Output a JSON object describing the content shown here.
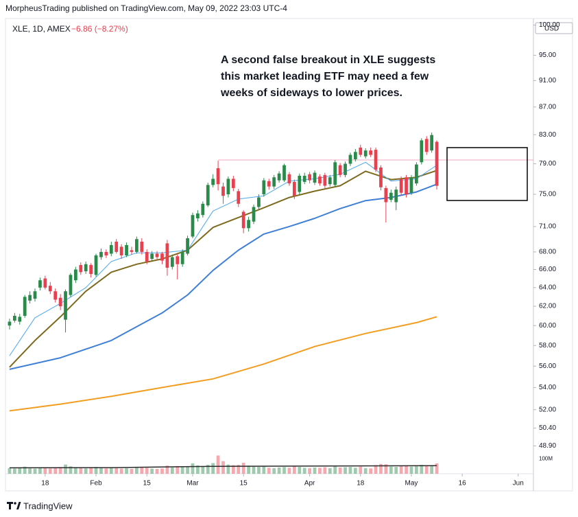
{
  "header": {
    "publisher": "MorpheusTrading published on TradingView.com, May 09, 2022 23:03 UTC-4",
    "symbol": "XLE, 1D, AMEX",
    "change": "−6.86 (−8.27%)",
    "currency": "USD",
    "brand": "TradingView"
  },
  "chart_data": {
    "type": "candlestick",
    "log_scale": true,
    "annotation": [
      "A second false breakout in XLE suggests",
      "this market leading ETF may need a few",
      "weeks of sideways to lower prices."
    ],
    "up_color": "#2a8a4a",
    "down_color": "#e8404e",
    "open": [
      60.0,
      60.5,
      60.4,
      61.0,
      62.6,
      62.8,
      64.0,
      65.0,
      64.2,
      63.6,
      62.9,
      60.6,
      63.2,
      64.8,
      66.5,
      65.8,
      66.5,
      65.4,
      67.4,
      68.0,
      67.8,
      69.2,
      68.6,
      67.6,
      68.2,
      68.0,
      69.2,
      68.0,
      67.2,
      67.8,
      67.8,
      69.0,
      66.3,
      67.5,
      66.6,
      67.8,
      69.8,
      72.0,
      72.4,
      73.6,
      76.2,
      78.4,
      76.0,
      75.0,
      77.0,
      75.4,
      72.8,
      70.8,
      71.6,
      73.4,
      75.0,
      76.7,
      76.0,
      76.8,
      76.8,
      77.6,
      76.6,
      75.3,
      76.6,
      77.6,
      76.5,
      77.3,
      77.5,
      76.3,
      76.2,
      78.8,
      77.5,
      79.0,
      79.6,
      81.2,
      80.0,
      80.8,
      80.9,
      78.5,
      75.8,
      74.3,
      74.0,
      77.0,
      77.2,
      75.2,
      76.4,
      79.2,
      82.4,
      80.8,
      82.0
    ],
    "high": [
      60.7,
      61.3,
      61.2,
      63.2,
      63.6,
      63.9,
      65.1,
      65.3,
      64.6,
      63.9,
      63.3,
      63.8,
      65.6,
      66.3,
      66.8,
      66.9,
      66.7,
      67.8,
      68.4,
      68.3,
      69.2,
      69.5,
      68.9,
      69.1,
      68.6,
      69.8,
      69.6,
      68.3,
      68.1,
      68.1,
      68.0,
      69.4,
      67.7,
      67.8,
      68.3,
      69.9,
      72.7,
      73.0,
      74.1,
      76.5,
      77.6,
      79.4,
      76.5,
      77.3,
      77.4,
      75.7,
      73.0,
      72.2,
      73.7,
      75.0,
      77.1,
      77.0,
      77.5,
      78.0,
      79.0,
      77.9,
      76.9,
      77.7,
      77.8,
      77.9,
      78.1,
      77.6,
      77.8,
      77.5,
      79.5,
      79.1,
      79.3,
      80.5,
      81.0,
      81.6,
      81.1,
      81.2,
      81.2,
      78.8,
      76.1,
      75.6,
      76.0,
      77.3,
      77.5,
      77.5,
      79.2,
      82.5,
      82.8,
      83.3,
      82.2
    ],
    "low": [
      59.6,
      60.3,
      60.1,
      60.8,
      62.3,
      62.5,
      63.7,
      63.8,
      63.3,
      62.4,
      61.6,
      59.3,
      63.0,
      64.5,
      65.4,
      65.5,
      65.1,
      65.2,
      67.1,
      67.3,
      67.5,
      67.8,
      67.2,
      67.4,
      67.7,
      67.8,
      67.7,
      66.6,
      66.9,
      67.1,
      66.6,
      65.3,
      66.0,
      64.9,
      66.3,
      67.6,
      69.6,
      71.6,
      72.1,
      73.4,
      75.9,
      75.5,
      73.8,
      74.6,
      75.4,
      73.4,
      70.2,
      70.4,
      71.3,
      73.1,
      74.7,
      75.6,
      75.7,
      76.5,
      76.6,
      76.1,
      74.4,
      75.0,
      76.3,
      76.4,
      76.2,
      76.1,
      75.8,
      76.0,
      76.0,
      77.2,
      77.2,
      78.7,
      79.3,
      79.9,
      79.7,
      79.9,
      77.9,
      75.5,
      71.5,
      74.0,
      73.0,
      74.8,
      74.6,
      74.9,
      76.1,
      78.9,
      80.2,
      80.5,
      75.6
    ],
    "close": [
      60.4,
      61.0,
      60.9,
      63.0,
      63.2,
      63.6,
      64.8,
      64.0,
      63.6,
      62.7,
      62.0,
      63.6,
      65.4,
      66.0,
      65.7,
      66.6,
      65.5,
      67.6,
      68.0,
      67.6,
      68.8,
      68.0,
      67.6,
      68.8,
      68.0,
      69.5,
      68.0,
      66.9,
      67.8,
      67.4,
      67.0,
      66.2,
      67.4,
      66.6,
      68.0,
      69.6,
      72.4,
      72.6,
      73.8,
      76.2,
      77.0,
      76.3,
      74.8,
      77.0,
      75.8,
      73.8,
      70.8,
      71.8,
      73.4,
      74.6,
      76.8,
      76.0,
      77.2,
      77.7,
      78.8,
      76.4,
      74.8,
      77.4,
      77.4,
      76.8,
      77.8,
      76.4,
      76.1,
      77.2,
      79.2,
      77.5,
      79.0,
      80.2,
      80.6,
      80.2,
      80.8,
      80.2,
      78.2,
      75.9,
      74.0,
      75.2,
      75.6,
      75.2,
      75.0,
      77.2,
      78.9,
      82.2,
      80.6,
      82.95,
      76.09
    ],
    "series": [
      {
        "color": "#f29d1f",
        "x": [
          0,
          10,
          20,
          30,
          40,
          50,
          60,
          70,
          80,
          84
        ],
        "values": [
          51.9,
          52.5,
          53.2,
          54.0,
          54.8,
          56.2,
          57.9,
          59.2,
          60.3,
          60.9
        ]
      },
      {
        "color": "#3f7fd6",
        "x": [
          0,
          10,
          20,
          30,
          35,
          40,
          45,
          50,
          55,
          60,
          65,
          70,
          75,
          80,
          84
        ],
        "values": [
          55.7,
          56.8,
          58.5,
          61.3,
          63.2,
          65.9,
          68.2,
          70.1,
          71.0,
          72.0,
          73.2,
          74.2,
          74.6,
          75.3,
          76.3
        ]
      },
      {
        "color": "#7d6a1e",
        "x": [
          0,
          5,
          10,
          15,
          20,
          25,
          30,
          35,
          40,
          45,
          50,
          55,
          60,
          65,
          70,
          75,
          80,
          84
        ],
        "values": [
          55.9,
          58.5,
          60.9,
          63.6,
          65.7,
          66.6,
          67.2,
          68.2,
          70.9,
          72.1,
          73.3,
          74.6,
          75.4,
          76.1,
          78.0,
          76.9,
          77.2,
          78.1
        ]
      },
      {
        "color": "#4aa8ee",
        "x": [
          0,
          5,
          10,
          15,
          20,
          25,
          30,
          35,
          40,
          45,
          50,
          55,
          60,
          65,
          70,
          75,
          80,
          84
        ],
        "values": [
          57.0,
          60.8,
          62.3,
          64.0,
          66.9,
          67.9,
          67.9,
          68.2,
          72.9,
          74.4,
          74.8,
          76.7,
          77.0,
          77.6,
          79.2,
          76.7,
          77.0,
          78.8
        ]
      }
    ],
    "xlim": [
      -0.8,
      103
    ],
    "xticks": [
      {
        "value": 7,
        "label": "18"
      },
      {
        "value": 17,
        "label": "Feb"
      },
      {
        "value": 27,
        "label": "15"
      },
      {
        "value": 36,
        "label": "Mar"
      },
      {
        "value": 46,
        "label": "15"
      },
      {
        "value": 59,
        "label": "Apr"
      },
      {
        "value": 69,
        "label": "18"
      },
      {
        "value": 79,
        "label": "May"
      },
      {
        "value": 89,
        "label": "16"
      },
      {
        "value": 100,
        "label": "Jun"
      }
    ],
    "ylim": [
      48.3,
      101
    ],
    "yticks": [
      {
        "value": 100,
        "label": "100.00"
      },
      {
        "value": 95,
        "label": "95.00"
      },
      {
        "value": 91,
        "label": "91.00"
      },
      {
        "value": 87,
        "label": "87.00"
      },
      {
        "value": 83,
        "label": "83.00"
      },
      {
        "value": 79,
        "label": "79.00"
      },
      {
        "value": 75,
        "label": "75.00"
      },
      {
        "value": 71,
        "label": "71.00"
      },
      {
        "value": 68,
        "label": "68.00"
      },
      {
        "value": 66,
        "label": "66.00"
      },
      {
        "value": 64,
        "label": "64.00"
      },
      {
        "value": 62,
        "label": "62.00"
      },
      {
        "value": 60,
        "label": "60.00"
      },
      {
        "value": 58,
        "label": "58.00"
      },
      {
        "value": 56,
        "label": "56.00"
      },
      {
        "value": 54,
        "label": "54.00"
      },
      {
        "value": 52,
        "label": "52.00"
      },
      {
        "value": 50.4,
        "label": "50.40"
      },
      {
        "value": 48.9,
        "label": "48.90"
      }
    ],
    "volume": {
      "ylim": [
        0,
        125
      ],
      "yticks": [
        {
          "value": 100,
          "label": "100M"
        }
      ],
      "values": [
        38,
        35,
        40,
        48,
        36,
        34,
        42,
        38,
        36,
        40,
        45,
        62,
        50,
        44,
        38,
        36,
        40,
        46,
        42,
        36,
        40,
        38,
        35,
        37,
        33,
        44,
        42,
        40,
        35,
        33,
        36,
        55,
        42,
        52,
        44,
        48,
        70,
        56,
        50,
        60,
        72,
        123,
        85,
        62,
        58,
        60,
        74,
        55,
        48,
        46,
        52,
        40,
        38,
        42,
        45,
        40,
        52,
        46,
        40,
        38,
        42,
        40,
        44,
        38,
        55,
        42,
        44,
        46,
        40,
        48,
        38,
        36,
        58,
        66,
        64,
        48,
        46,
        54,
        52,
        48,
        50,
        60,
        56,
        52,
        70
      ],
      "ma": {
        "color": "#2b2b2b",
        "x": [
          0,
          20,
          40,
          60,
          84
        ],
        "values": [
          40,
          41,
          50,
          52,
          54
        ]
      }
    }
  }
}
